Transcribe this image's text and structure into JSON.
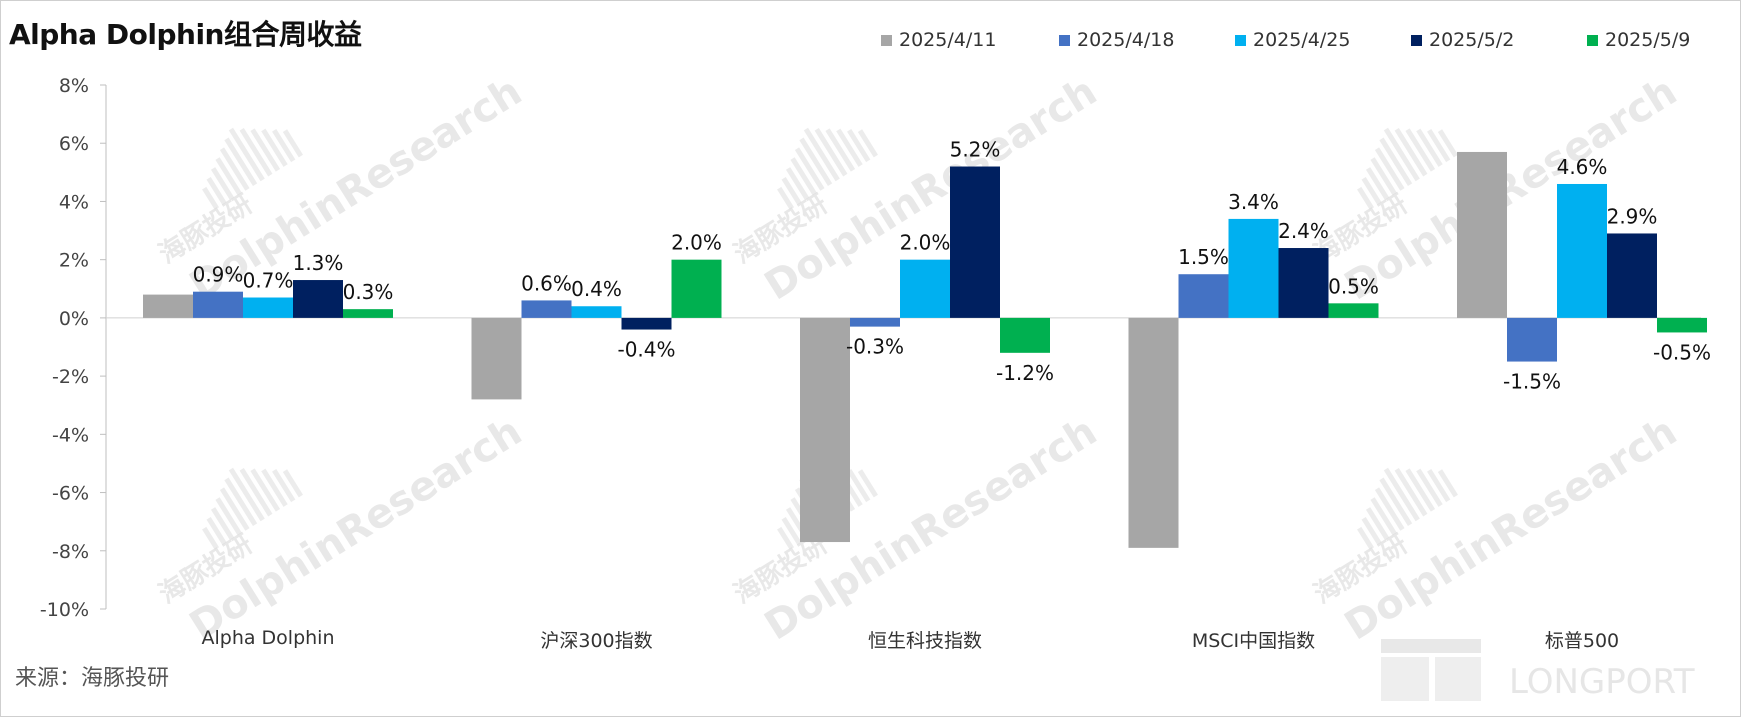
{
  "title": "Alpha Dolphin组合周收益",
  "source": "来源：海豚投研",
  "watermark": {
    "brand": "DolphinResearch",
    "cn": "海豚投研",
    "logo": "LONGPORT"
  },
  "chart_data": {
    "type": "bar",
    "title": "Alpha Dolphin组合周收益",
    "xlabel": "",
    "ylabel": "",
    "ylim": [
      -10,
      8
    ],
    "yticks": [
      8,
      6,
      4,
      2,
      0,
      -2,
      -4,
      -6,
      -8,
      -10
    ],
    "ytick_labels": [
      "8%",
      "6%",
      "4%",
      "2%",
      "0%",
      "-2%",
      "-4%",
      "-6%",
      "-8%",
      "-10%"
    ],
    "categories": [
      "Alpha Dolphin",
      "沪深300指数",
      "恒生科技指数",
      "MSCI中国指数",
      "标普500"
    ],
    "legend_position": "top-right",
    "grid": false,
    "series": [
      {
        "name": "2025/4/11",
        "color": "#a6a6a6",
        "values": [
          0.8,
          -2.8,
          -7.7,
          -7.9,
          5.7
        ],
        "labels": [
          "",
          "",
          "",
          "",
          ""
        ]
      },
      {
        "name": "2025/4/18",
        "color": "#4472c4",
        "values": [
          0.9,
          0.6,
          -0.3,
          1.5,
          -1.5
        ],
        "labels": [
          "0.9%",
          "0.6%",
          "-0.3%",
          "1.5%",
          "-1.5%"
        ]
      },
      {
        "name": "2025/4/25",
        "color": "#00b0f0",
        "values": [
          0.7,
          0.4,
          2.0,
          3.4,
          4.6
        ],
        "labels": [
          "0.7%",
          "0.4%",
          "2.0%",
          "3.4%",
          "4.6%"
        ]
      },
      {
        "name": "2025/5/2",
        "color": "#002060",
        "values": [
          1.3,
          -0.4,
          5.2,
          2.4,
          2.9
        ],
        "labels": [
          "1.3%",
          "-0.4%",
          "5.2%",
          "2.4%",
          "2.9%"
        ]
      },
      {
        "name": "2025/5/9",
        "color": "#00b050",
        "values": [
          0.3,
          2.0,
          -1.2,
          0.5,
          -0.5
        ],
        "labels": [
          "0.3%",
          "2.0%",
          "-1.2%",
          "0.5%",
          "-0.5%"
        ]
      }
    ]
  }
}
